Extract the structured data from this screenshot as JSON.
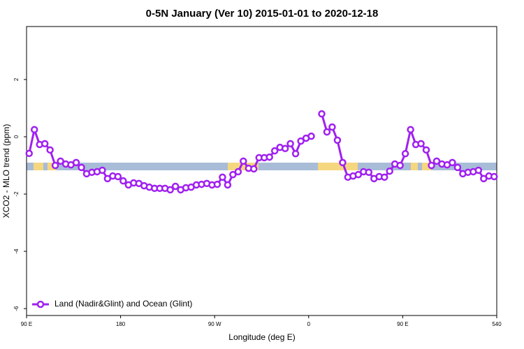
{
  "chart_data": {
    "type": "line",
    "title": "0-5N January (Ver 10)   2015-01-01 to 2020-12-18",
    "x_label": "Longitude (deg E)",
    "y_label": "XCO2 - MLO trend (ppm)",
    "x": [
      92.5,
      97.5,
      102.5,
      107.5,
      112.5,
      117.5,
      122.5,
      127.5,
      132.5,
      137.5,
      142.5,
      147.5,
      152.5,
      157.5,
      162.5,
      167.5,
      172.5,
      177.5,
      182.5,
      187.5,
      192.5,
      197.5,
      202.5,
      207.5,
      212.5,
      217.5,
      222.5,
      227.5,
      232.5,
      237.5,
      242.5,
      247.5,
      252.5,
      257.5,
      262.5,
      267.5,
      272.5,
      277.5,
      282.5,
      287.5,
      292.5,
      297.5,
      302.5,
      307.5,
      312.5,
      317.5,
      322.5,
      327.5,
      332.5,
      337.5,
      342.5,
      347.5,
      352.5,
      357.5,
      362.5,
      367.5,
      372.5,
      377.5,
      382.5,
      387.5,
      392.5,
      397.5,
      402.5,
      407.5,
      412.5,
      417.5,
      422.5,
      427.5,
      432.5,
      437.5,
      442.5,
      447.5,
      452.5,
      457.5,
      462.5,
      467.5,
      472.5,
      477.5,
      482.5,
      487.5,
      492.5,
      497.5,
      502.5,
      507.5,
      512.5,
      517.5,
      522.5,
      527.5,
      532.5,
      537.5
    ],
    "series": [
      {
        "name": "Land (Nadir&Glint) and Ocean (Glint)",
        "color": "#a020f0",
        "values": [
          -0.58,
          0.25,
          -0.27,
          -0.24,
          -0.46,
          -1.0,
          -0.85,
          -0.95,
          -0.98,
          -0.9,
          -1.07,
          -1.29,
          -1.24,
          -1.22,
          -1.17,
          -1.46,
          -1.37,
          -1.39,
          -1.54,
          -1.68,
          -1.61,
          -1.63,
          -1.71,
          -1.76,
          -1.8,
          -1.8,
          -1.8,
          -1.85,
          -1.73,
          -1.85,
          -1.78,
          -1.76,
          -1.68,
          -1.66,
          -1.63,
          -1.68,
          -1.66,
          -1.41,
          -1.68,
          -1.32,
          -1.22,
          -0.85,
          -1.1,
          -1.12,
          -0.73,
          -0.73,
          -0.71,
          -0.49,
          -0.37,
          -0.41,
          -0.24,
          -0.59,
          -0.15,
          -0.05,
          0.02,
          null,
          0.8,
          0.17,
          0.34,
          -0.12,
          -0.9,
          -1.41,
          -1.37,
          -1.32,
          -1.22,
          -1.24,
          -1.46,
          -1.39,
          -1.41,
          -1.2,
          -0.95,
          -1.0,
          -0.59,
          0.25,
          -0.27,
          -0.24,
          -0.46,
          -1.0,
          -0.85,
          -0.95,
          -0.98,
          -0.9,
          -1.07,
          -1.29,
          -1.24,
          -1.22,
          -1.17,
          -1.46,
          -1.37,
          -1.39
        ]
      }
    ],
    "xlim": [
      90,
      540
    ],
    "xticks": [
      {
        "value": 90,
        "label": "90 E"
      },
      180,
      {
        "value": 270,
        "label": "90 W"
      },
      {
        "value": 360,
        "label": "0"
      },
      {
        "value": 450,
        "label": "90 E"
      },
      540
    ],
    "ylim": [
      -6.24,
      3.85
    ],
    "yticks": [
      2,
      0,
      -2,
      -4,
      -6
    ],
    "legend": "bottom-left"
  }
}
